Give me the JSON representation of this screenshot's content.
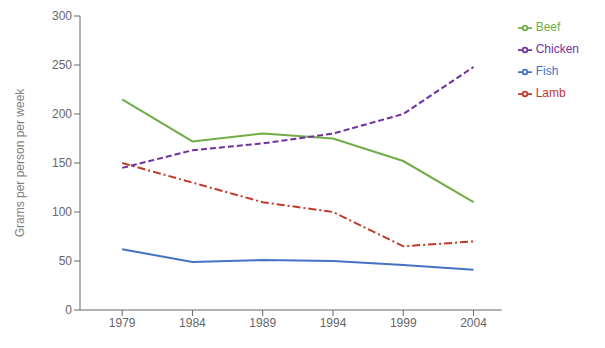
{
  "chart_data": {
    "type": "line",
    "ylabel": "Grams per person per week",
    "x": [
      1979,
      1984,
      1989,
      1994,
      1999,
      2004
    ],
    "xlim": [
      1976,
      2006
    ],
    "xticks": [
      1979,
      1984,
      1989,
      1994,
      1999,
      2004
    ],
    "ylim": [
      0,
      300
    ],
    "yticks": [
      0,
      50,
      100,
      150,
      200,
      250,
      300
    ],
    "grid": false,
    "legend": "right",
    "series": [
      {
        "name": "Fish",
        "color": "#4472C4",
        "line_style": "solid",
        "values": [
          62,
          49,
          51,
          50,
          46,
          41
        ]
      },
      {
        "name": "Lamb",
        "color": "#C0392B",
        "line_style": "dashdot",
        "values": [
          150,
          130,
          110,
          100,
          65,
          70
        ]
      },
      {
        "name": "Beef",
        "color": "#70AD47",
        "line_style": "solid",
        "values": [
          215,
          172,
          180,
          175,
          152,
          110
        ]
      },
      {
        "name": "Chicken",
        "color": "#7030A0",
        "line_style": "dashed",
        "values": [
          145,
          163,
          170,
          180,
          200,
          248
        ]
      }
    ]
  }
}
